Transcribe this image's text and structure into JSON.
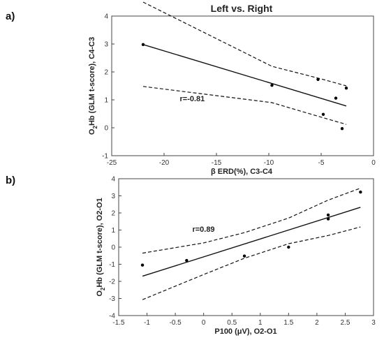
{
  "panels": [
    {
      "letter": "a)",
      "chart_data": {
        "type": "scatter",
        "title": "Left vs. Right",
        "xlabel": "β ERD(%), C3-C4",
        "ylabel_parts": [
          "O",
          "2",
          "Hb (GLM t-score), C4-C3"
        ],
        "xlim": [
          -25,
          0
        ],
        "ylim": [
          -1,
          4
        ],
        "x_ticks": [
          -25,
          -20,
          -15,
          -10,
          -5,
          0
        ],
        "y_ticks": [
          -1,
          0,
          1,
          2,
          3,
          4
        ],
        "points": [
          {
            "x": -22.0,
            "y": 2.98
          },
          {
            "x": -9.7,
            "y": 1.52
          },
          {
            "x": -5.3,
            "y": 1.73
          },
          {
            "x": -4.8,
            "y": 0.48
          },
          {
            "x": -3.6,
            "y": 1.06
          },
          {
            "x": -3.0,
            "y": -0.03
          },
          {
            "x": -2.6,
            "y": 1.42
          }
        ],
        "fit_line": [
          {
            "x": -22.0,
            "y": 2.98
          },
          {
            "x": -2.6,
            "y": 0.78
          }
        ],
        "ci_upper": [
          {
            "x": -22.0,
            "y": 4.5
          },
          {
            "x": -9.7,
            "y": 2.2
          },
          {
            "x": -5.0,
            "y": 1.75
          },
          {
            "x": -2.6,
            "y": 1.5
          }
        ],
        "ci_lower": [
          {
            "x": -22.0,
            "y": 1.48
          },
          {
            "x": -9.7,
            "y": 0.9
          },
          {
            "x": -5.0,
            "y": 0.38
          },
          {
            "x": -2.6,
            "y": 0.12
          }
        ],
        "annotation": {
          "text": "r=-0.81",
          "x": -18.5,
          "y": 0.95
        }
      }
    },
    {
      "letter": "b)",
      "chart_data": {
        "type": "scatter",
        "title": "",
        "xlabel": "P100 (μV), O2-O1",
        "ylabel_parts": [
          "O",
          "2",
          "Hb (GLM t-score), O2-O1"
        ],
        "xlim": [
          -1.5,
          3
        ],
        "ylim": [
          -4,
          4
        ],
        "x_ticks": [
          -1.5,
          -1,
          -0.5,
          0,
          0.5,
          1,
          1.5,
          2,
          2.5,
          3
        ],
        "y_ticks": [
          -4,
          -3,
          -2,
          -1,
          0,
          1,
          2,
          3,
          4
        ],
        "points": [
          {
            "x": -1.08,
            "y": -1.05
          },
          {
            "x": -0.3,
            "y": -0.78
          },
          {
            "x": 0.72,
            "y": -0.52
          },
          {
            "x": 1.5,
            "y": 0.0
          },
          {
            "x": 2.2,
            "y": 1.88
          },
          {
            "x": 2.2,
            "y": 1.65
          },
          {
            "x": 2.77,
            "y": 3.22
          }
        ],
        "fit_line": [
          {
            "x": -1.08,
            "y": -1.7
          },
          {
            "x": 2.77,
            "y": 2.33
          }
        ],
        "ci_upper": [
          {
            "x": -1.08,
            "y": -0.35
          },
          {
            "x": 0,
            "y": 0.25
          },
          {
            "x": 0.72,
            "y": 0.85
          },
          {
            "x": 1.5,
            "y": 1.7
          },
          {
            "x": 2.2,
            "y": 2.75
          },
          {
            "x": 2.77,
            "y": 3.45
          }
        ],
        "ci_lower": [
          {
            "x": -1.08,
            "y": -3.07
          },
          {
            "x": 0,
            "y": -1.6
          },
          {
            "x": 0.72,
            "y": -0.65
          },
          {
            "x": 1.5,
            "y": 0.2
          },
          {
            "x": 2.2,
            "y": 0.68
          },
          {
            "x": 2.77,
            "y": 1.18
          }
        ],
        "annotation": {
          "text": "r=0.89",
          "x": -0.2,
          "y": 0.9
        }
      }
    }
  ]
}
